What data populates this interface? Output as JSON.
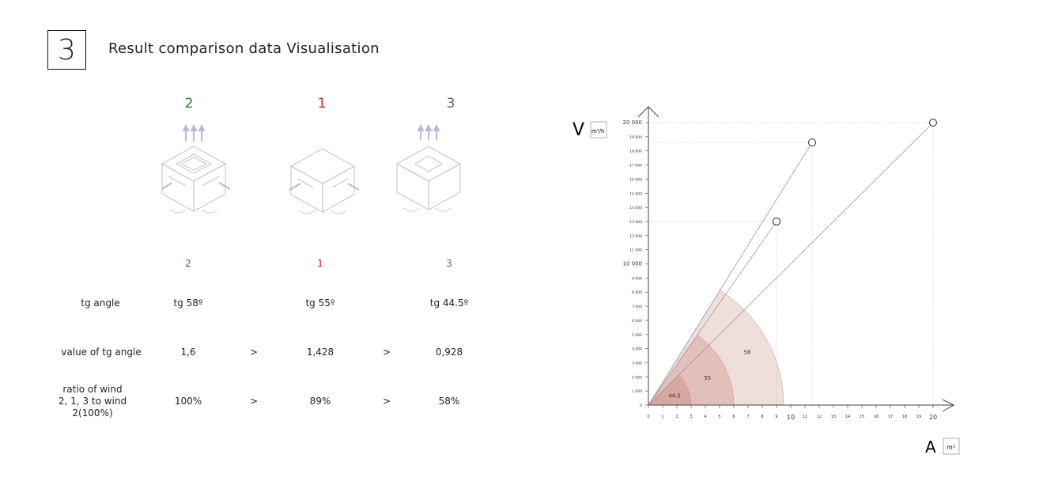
{
  "section": {
    "number": "3",
    "title": "Result comparison data Visualisation"
  },
  "ranks_top": [
    "2",
    "1",
    "3"
  ],
  "ranks_mid": [
    "2",
    "1",
    "3"
  ],
  "table": {
    "rows": [
      {
        "label": "tg angle",
        "values": [
          "tg 58º",
          "tg 55º",
          "tg 44.5º"
        ],
        "separators": [
          "",
          ""
        ]
      },
      {
        "label": "value of tg angle",
        "values": [
          "1,6",
          "1,428",
          "0,928"
        ],
        "separators": [
          ">",
          ">"
        ]
      },
      {
        "label": "ratio of  wind\n2, 1, 3 to wind\n2(100%)",
        "values": [
          "100%",
          "89%",
          "58%"
        ],
        "separators": [
          ">",
          ">"
        ]
      }
    ]
  },
  "colors": {
    "green": "#2e7d32",
    "red": "#c62828",
    "grey": "#666666"
  },
  "chart_data": {
    "type": "scatter",
    "ylabel": "V",
    "yunit": "m³/h",
    "xlabel": "A",
    "xunit": "m²",
    "xlim": [
      0,
      20
    ],
    "ylim": [
      0,
      20000
    ],
    "x_ticks": [
      "0",
      "1",
      "2",
      "3",
      "4",
      "5",
      "6",
      "7",
      "8",
      "9",
      "10",
      "11",
      "12",
      "13",
      "14",
      "15",
      "16",
      "17",
      "18",
      "19",
      "20"
    ],
    "y_ticks": [
      "0",
      "1 000",
      "2 000",
      "3 000",
      "4 000",
      "5 000",
      "6 000",
      "7 000",
      "8 000",
      "9 000",
      "10 000",
      "11 000",
      "12 000",
      "13 000",
      "14 000",
      "15 000",
      "16 000",
      "17 000",
      "18 000",
      "19 000",
      "20 000"
    ],
    "points": [
      {
        "x": 9,
        "y": 13000
      },
      {
        "x": 11.5,
        "y": 18600
      },
      {
        "x": 20,
        "y": 20000
      }
    ],
    "angles": [
      {
        "label": "44.5",
        "deg": 44.5,
        "radius": 3
      },
      {
        "label": "55",
        "deg": 55,
        "radius": 6
      },
      {
        "label": "58",
        "deg": 58,
        "radius": 9.5
      }
    ]
  }
}
